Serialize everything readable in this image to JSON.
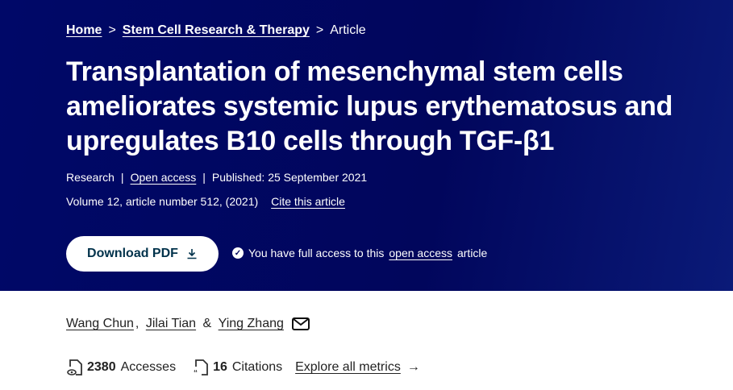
{
  "breadcrumb": {
    "items": [
      "Home",
      "Stem Cell Research & Therapy"
    ],
    "current": "Article",
    "separator": ">"
  },
  "article": {
    "title": "Transplantation of mesenchymal stem cells ameliorates systemic lupus erythematosus and upregulates B10 cells through TGF-β1",
    "type": "Research",
    "access": "Open access",
    "published": "Published: 25 September 2021",
    "volume": "Volume 12, article number 512, (2021)",
    "cite": "Cite this article"
  },
  "download": {
    "label": "Download PDF",
    "icon": "download-icon"
  },
  "access_note": {
    "prefix": "You have full access to this",
    "link": "open access",
    "suffix": "article"
  },
  "authors": [
    {
      "name": "Wang Chun"
    },
    {
      "name": "Jilai Tian"
    },
    {
      "name": "Ying Zhang"
    }
  ],
  "authors_sep": {
    "comma": ",",
    "amp": "&"
  },
  "metrics": {
    "accesses_count": "2380",
    "accesses_label": "Accesses",
    "citations_count": "16",
    "citations_label": "Citations",
    "explore": "Explore all metrics"
  },
  "colors": {
    "hero": "#01065c",
    "button_text": "#01324b"
  }
}
